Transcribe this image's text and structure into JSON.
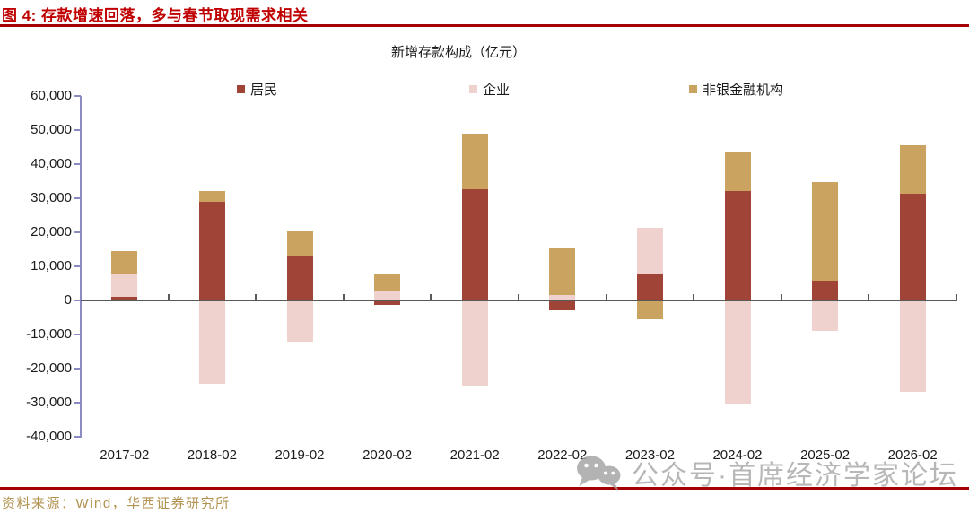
{
  "figure": {
    "caption": "图 4: 存款增速回落，多与春节取现需求相关",
    "source": "资料来源：Wind，华西证券研究所",
    "watermark_text": "公众号·首席经济学家论坛",
    "colors": {
      "caption_red": "#c00000",
      "rule_red": "#a50000",
      "axis_line": "#8a8ac4",
      "zero_line": "#595959",
      "source_gold": "#b2924e",
      "watermark_gray": "#ababab"
    }
  },
  "chart_data": {
    "type": "bar",
    "stacked": true,
    "title": "新增存款构成（亿元）",
    "xlabel": "",
    "ylabel": "",
    "grid": false,
    "legend_position": "top",
    "categories": [
      "2017-02",
      "2018-02",
      "2019-02",
      "2020-02",
      "2021-02",
      "2022-02",
      "2023-02",
      "2024-02",
      "2025-02",
      "2026-02"
    ],
    "series": [
      {
        "name": "居民",
        "color": "#a04438",
        "values": [
          1000,
          28900,
          13100,
          -1300,
          32700,
          -2900,
          7800,
          32000,
          5800,
          31200
        ]
      },
      {
        "name": "企业",
        "color": "#efd2cd",
        "values": [
          6600,
          -24400,
          -12000,
          2800,
          -24900,
          1500,
          13400,
          -30500,
          -9000,
          -26800
        ]
      },
      {
        "name": "非银金融机构",
        "color": "#c9a35f",
        "values": [
          7000,
          3200,
          7100,
          5100,
          16300,
          13800,
          -5400,
          11700,
          28900,
          14200
        ]
      }
    ],
    "ylim": [
      -40000,
      60000
    ],
    "ytick_values": [
      60000,
      50000,
      40000,
      30000,
      20000,
      10000,
      0,
      -10000,
      -20000,
      -30000,
      -40000
    ],
    "ytick_labels": [
      "60,000",
      "50,000",
      "40,000",
      "30,000",
      "20,000",
      "10,000",
      "0",
      "-10,000",
      "-20,000",
      "-30,000",
      "-40,000"
    ]
  }
}
